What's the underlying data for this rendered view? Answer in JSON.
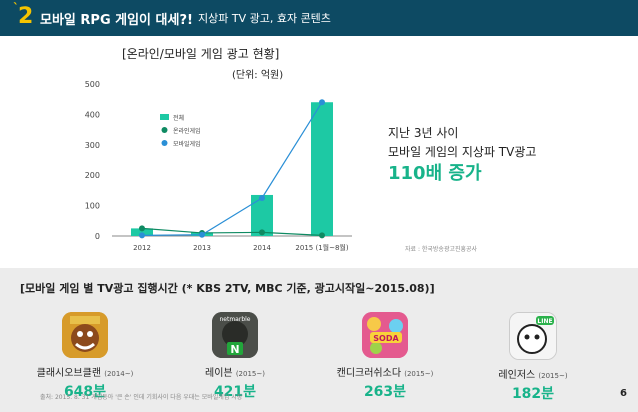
{
  "header": {
    "section_number": "2",
    "title": "모바일 RPG 게임이 대세?!",
    "subtitle": "지상파 TV 광고, 효자 콘텐츠"
  },
  "chart": {
    "title": "[온라인/모바일 게임 광고 현황]",
    "unit": "(단위: 억원)",
    "source": "자료 : 한국방송광고진흥공사"
  },
  "chart_data": {
    "type": "bar",
    "categories": [
      "2012",
      "2013",
      "2014",
      "2015 (1월~8월)"
    ],
    "title": "[온라인/모바일 게임 광고 현황]",
    "ylabel": "",
    "xlabel": "",
    "ylim": [
      0,
      500
    ],
    "yticks": [
      0,
      100,
      200,
      300,
      400,
      500
    ],
    "legend_position": "top-left",
    "grid": false,
    "series": [
      {
        "name": "전체",
        "type": "bar",
        "color": "#1dc9a4",
        "values": [
          25,
          12,
          135,
          440
        ]
      },
      {
        "name": "온라인게임",
        "type": "line",
        "color": "#0f8a62",
        "values": [
          25,
          10,
          12,
          2
        ]
      },
      {
        "name": "모바일게임",
        "type": "line",
        "color": "#2a8fd6",
        "values": [
          2,
          4,
          125,
          440
        ]
      }
    ]
  },
  "callout": {
    "line1": "지난 3년 사이",
    "line2": "모바일 게임의 지상파 TV광고",
    "highlight": "110배 증가"
  },
  "bottom": {
    "title": "[모바일 게임 별 TV광고 집행시간 (* KBS 2TV, MBC 기준, 광고시작일~2015.08)]",
    "games": [
      {
        "name": "클래시오브클랜",
        "since": "(2014~)",
        "minutes": "648분",
        "color": "#c8881c"
      },
      {
        "name": "레이븐",
        "since": "(2015~)",
        "minutes": "421분",
        "color": "#3a3f3a",
        "badge": "netmarble",
        "badge2": "N"
      },
      {
        "name": "캔디크러쉬소다",
        "since": "(2015~)",
        "minutes": "263분",
        "color": "#e04f8a",
        "badge": "SODA"
      },
      {
        "name": "레인저스",
        "since": "(2015~)",
        "minutes": "182분",
        "color": "#f2f2f2",
        "badge": "LINE"
      }
    ],
    "footnote": "출처: 2015. 8. 31 게임동아 '큰 손' 인데 기회사이 다음 우대는 모바일게임 시장",
    "page_number": "6"
  }
}
